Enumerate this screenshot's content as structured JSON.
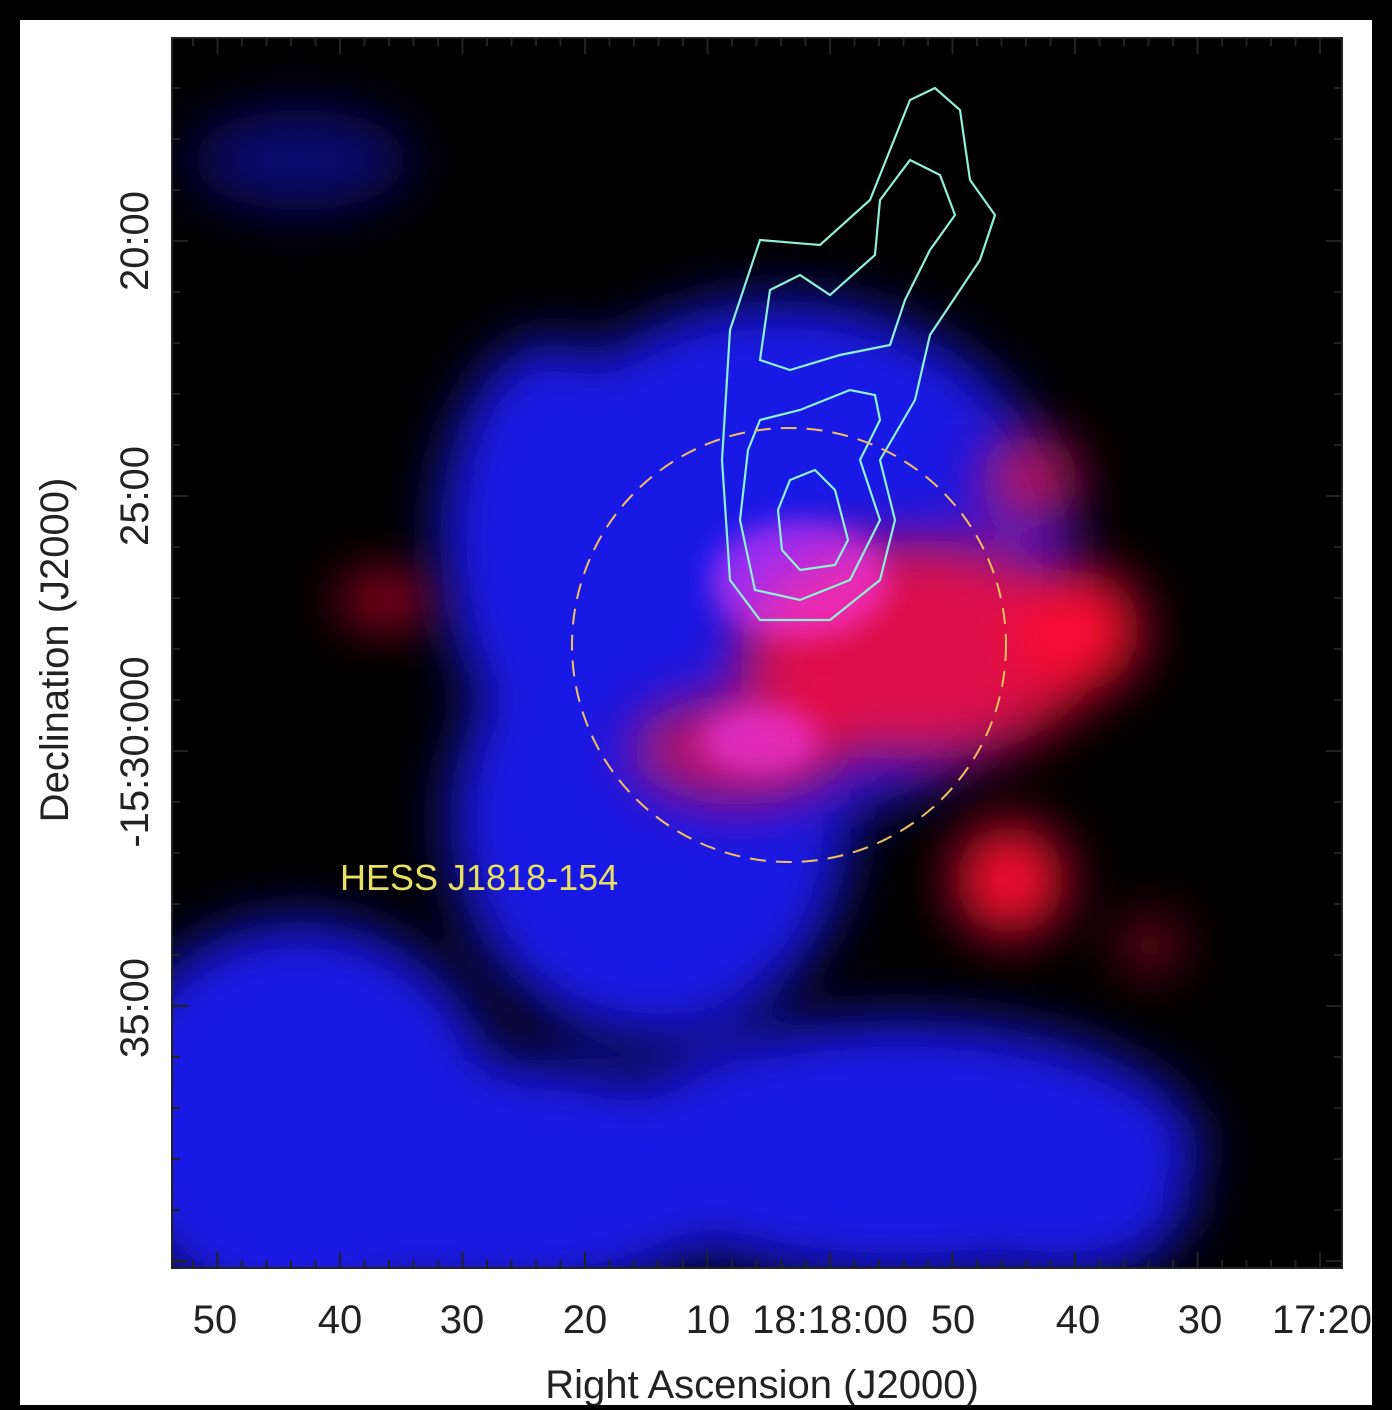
{
  "figure": {
    "x_axis": {
      "label": "Right Ascension (J2000)",
      "tick_labels": [
        "50",
        "40",
        "30",
        "20",
        "10",
        "18:18:00",
        "50",
        "40",
        "30",
        "17:20"
      ]
    },
    "y_axis": {
      "label": "Declination (J2000)",
      "tick_labels": [
        "20:00",
        "25:00",
        "-15:30:000",
        "35:00"
      ]
    },
    "annotation": "HESS J1818-154"
  }
}
